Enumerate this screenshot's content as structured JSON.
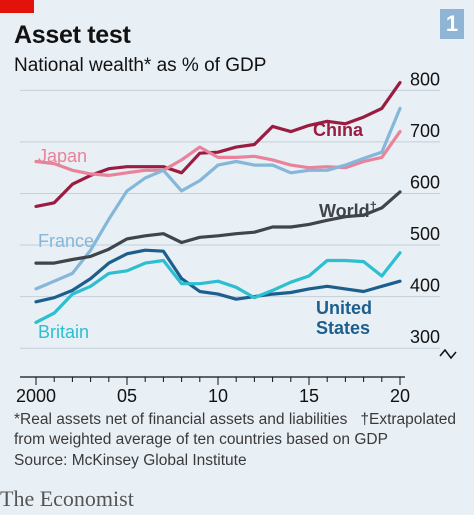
{
  "header": {
    "badge": "1",
    "title": "Asset test",
    "subtitle": "National wealth* as % of GDP"
  },
  "colors": {
    "accent_red": "#e3120b",
    "badge_bg": "#8fb4d4",
    "background": "#e8eff5"
  },
  "chart_data": {
    "type": "line",
    "title": "Asset test",
    "subtitle": "National wealth* as % of GDP",
    "xlabel": "",
    "ylabel": "",
    "xlim": [
      2000,
      2020
    ],
    "ylim": [
      250,
      820
    ],
    "y_axis_side": "right",
    "y_ticks": [
      300,
      400,
      500,
      600,
      700,
      800
    ],
    "y_tick_labels": [
      "300",
      "400",
      "500",
      "600",
      "700",
      "800"
    ],
    "x_ticks": [
      2000,
      2005,
      2010,
      2015,
      2020
    ],
    "x_tick_labels": [
      "2000",
      "05",
      "10",
      "15",
      "20"
    ],
    "grid": "horizontal",
    "axis_break": true,
    "series": [
      {
        "name": "China",
        "color": "#9a1d41",
        "x": [
          2000,
          2001,
          2002,
          2003,
          2004,
          2005,
          2006,
          2007,
          2008,
          2009,
          2010,
          2011,
          2012,
          2013,
          2014,
          2015,
          2016,
          2017,
          2018,
          2019,
          2020
        ],
        "values": [
          575,
          582,
          618,
          635,
          648,
          652,
          652,
          652,
          640,
          678,
          680,
          690,
          695,
          730,
          720,
          732,
          740,
          735,
          748,
          765,
          815
        ]
      },
      {
        "name": "Japan",
        "color": "#e8839b",
        "x": [
          2000,
          2001,
          2002,
          2003,
          2004,
          2005,
          2006,
          2007,
          2008,
          2009,
          2010,
          2011,
          2012,
          2013,
          2014,
          2015,
          2016,
          2017,
          2018,
          2019,
          2020
        ],
        "values": [
          662,
          658,
          645,
          638,
          635,
          640,
          645,
          645,
          665,
          690,
          670,
          670,
          672,
          665,
          655,
          650,
          652,
          650,
          662,
          670,
          720
        ]
      },
      {
        "name": "France",
        "color": "#84b7d9",
        "x": [
          2000,
          2001,
          2002,
          2003,
          2004,
          2005,
          2006,
          2007,
          2008,
          2009,
          2010,
          2011,
          2012,
          2013,
          2014,
          2015,
          2016,
          2017,
          2018,
          2019,
          2020
        ],
        "values": [
          415,
          430,
          445,
          490,
          550,
          605,
          630,
          645,
          605,
          625,
          655,
          662,
          655,
          655,
          640,
          645,
          645,
          655,
          668,
          680,
          765
        ]
      },
      {
        "name": "World†",
        "color": "#3f4549",
        "x": [
          2000,
          2001,
          2002,
          2003,
          2004,
          2005,
          2006,
          2007,
          2008,
          2009,
          2010,
          2011,
          2012,
          2013,
          2014,
          2015,
          2016,
          2017,
          2018,
          2019,
          2020
        ],
        "values": [
          465,
          465,
          472,
          478,
          492,
          512,
          518,
          522,
          505,
          515,
          518,
          522,
          525,
          535,
          535,
          540,
          548,
          555,
          558,
          572,
          603
        ]
      },
      {
        "name": "United States",
        "color": "#1d5f8c",
        "x": [
          2000,
          2001,
          2002,
          2003,
          2004,
          2005,
          2006,
          2007,
          2008,
          2009,
          2010,
          2011,
          2012,
          2013,
          2014,
          2015,
          2016,
          2017,
          2018,
          2019,
          2020
        ],
        "values": [
          390,
          398,
          412,
          435,
          465,
          483,
          490,
          488,
          435,
          410,
          405,
          395,
          400,
          405,
          408,
          415,
          420,
          415,
          410,
          420,
          430
        ]
      },
      {
        "name": "Britain",
        "color": "#2bbfd1",
        "x": [
          2000,
          2001,
          2002,
          2003,
          2004,
          2005,
          2006,
          2007,
          2008,
          2009,
          2010,
          2011,
          2012,
          2013,
          2014,
          2015,
          2016,
          2017,
          2018,
          2019,
          2020
        ],
        "values": [
          350,
          368,
          405,
          420,
          445,
          450,
          465,
          470,
          425,
          425,
          430,
          418,
          398,
          412,
          428,
          440,
          470,
          470,
          468,
          440,
          485
        ]
      }
    ],
    "labels": {
      "China": "China",
      "Japan": "Japan",
      "France": "France",
      "World": "World",
      "World_mark": "†",
      "United_line1": "United",
      "United_line2": "States",
      "Britain": "Britain"
    }
  },
  "footnotes": {
    "line1": "*Real assets net of financial assets and liabilities",
    "dagger": "†Extrapolated",
    "line2": "from weighted average of ten countries based on GDP",
    "source": "Source: McKinsey Global Institute"
  },
  "brand": "The Economist"
}
